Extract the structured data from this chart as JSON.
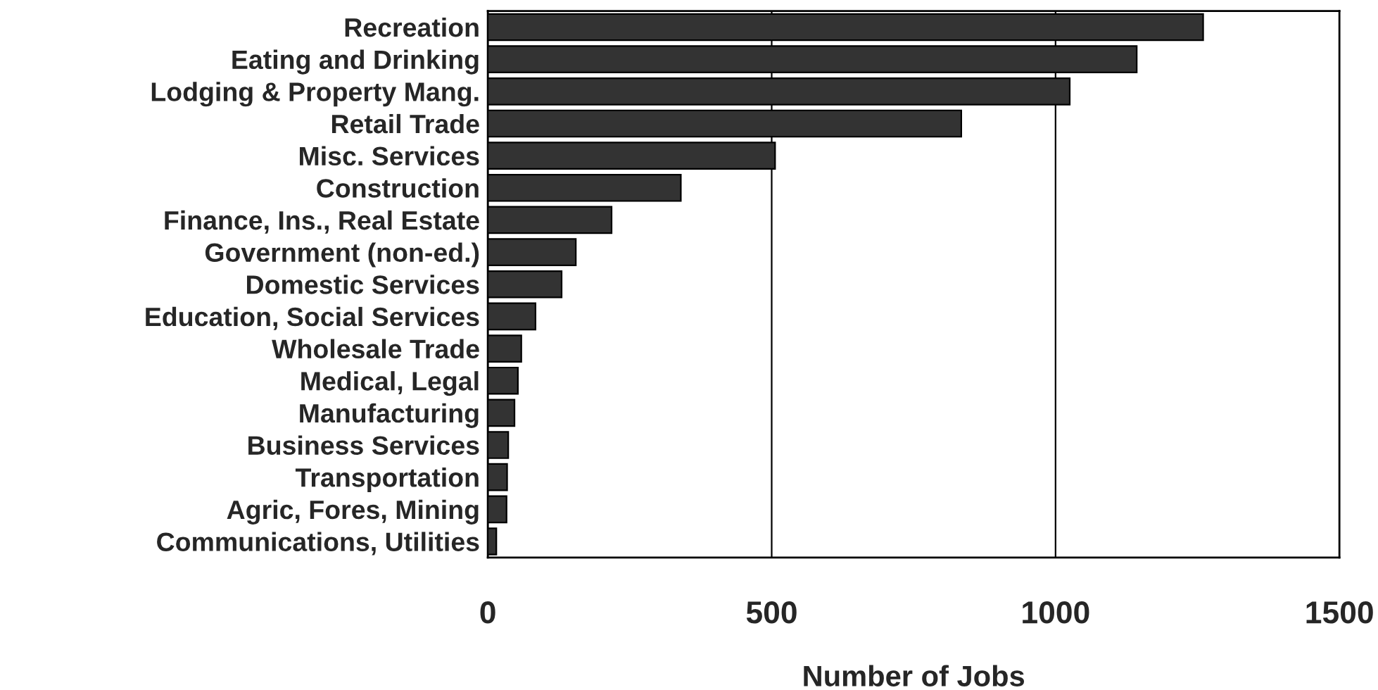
{
  "chart_data": {
    "type": "bar",
    "orientation": "horizontal",
    "xlabel": "Number of Jobs",
    "categories": [
      "Recreation",
      "Eating and Drinking",
      "Lodging & Property Mang.",
      "Retail Trade",
      "Misc. Services",
      "Construction",
      "Finance, Ins., Real Estate",
      "Government (non-ed.)",
      "Domestic Services",
      "Education, Social Services",
      "Wholesale Trade",
      "Medical, Legal",
      "Manufacturing",
      "Business Services",
      "Transportation",
      "Agric, Fores, Mining",
      "Communications, Utilities"
    ],
    "values": [
      1260,
      1143,
      1025,
      834,
      506,
      340,
      218,
      155,
      130,
      84,
      59,
      53,
      47,
      36,
      34,
      33,
      15
    ],
    "color": "#333333",
    "xlim": [
      0,
      1500
    ],
    "xticks": [
      0,
      500,
      1000,
      1500
    ],
    "grid": "x"
  }
}
